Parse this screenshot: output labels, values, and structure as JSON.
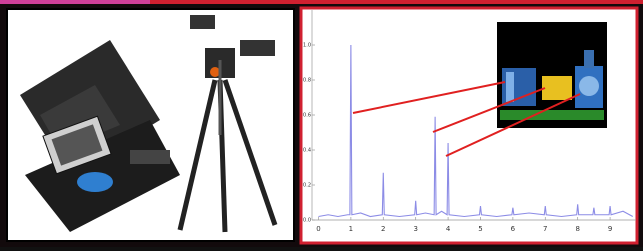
{
  "chart_data": {
    "type": "line",
    "x": [
      0,
      0.3,
      0.6,
      0.9,
      0.97,
      1,
      1.03,
      1.3,
      1.6,
      1.97,
      2,
      2.03,
      2.5,
      2.97,
      3,
      3.03,
      3.3,
      3.57,
      3.6,
      3.63,
      3.8,
      3.97,
      4,
      4.03,
      4.5,
      4.97,
      5,
      5.03,
      5.5,
      5.97,
      6,
      6.03,
      6.5,
      6.97,
      7,
      7.03,
      7.5,
      7.97,
      8,
      8.03,
      8.47,
      8.5,
      8.53,
      8.97,
      9,
      9.03,
      9.4,
      9.7
    ],
    "series": [
      {
        "color": "#8c8ce6",
        "values": [
          0.02,
          0.03,
          0.02,
          0.03,
          0.03,
          1.0,
          0.03,
          0.04,
          0.02,
          0.03,
          0.27,
          0.03,
          0.02,
          0.03,
          0.11,
          0.03,
          0.04,
          0.03,
          0.59,
          0.03,
          0.05,
          0.03,
          0.44,
          0.03,
          0.02,
          0.03,
          0.08,
          0.03,
          0.02,
          0.03,
          0.07,
          0.03,
          0.04,
          0.03,
          0.08,
          0.03,
          0.02,
          0.03,
          0.09,
          0.03,
          0.03,
          0.07,
          0.03,
          0.03,
          0.08,
          0.03,
          0.05,
          0.02
        ]
      }
    ],
    "xlim": [
      -0.2,
      9.8
    ],
    "ylim": [
      0,
      1.2
    ],
    "xticks": [
      0,
      1,
      2,
      3,
      4,
      5,
      6,
      7,
      8,
      9
    ],
    "yticks": [
      {
        "value": 0,
        "label": "0.0"
      },
      {
        "value": 0.2,
        "label": "0.2"
      },
      {
        "value": 0.4,
        "label": "0.4"
      },
      {
        "value": 0.6,
        "label": "0.6"
      },
      {
        "value": 0.8,
        "label": "0.8"
      },
      {
        "value": 1.0,
        "label": "1.0"
      }
    ],
    "grid": false
  }
}
